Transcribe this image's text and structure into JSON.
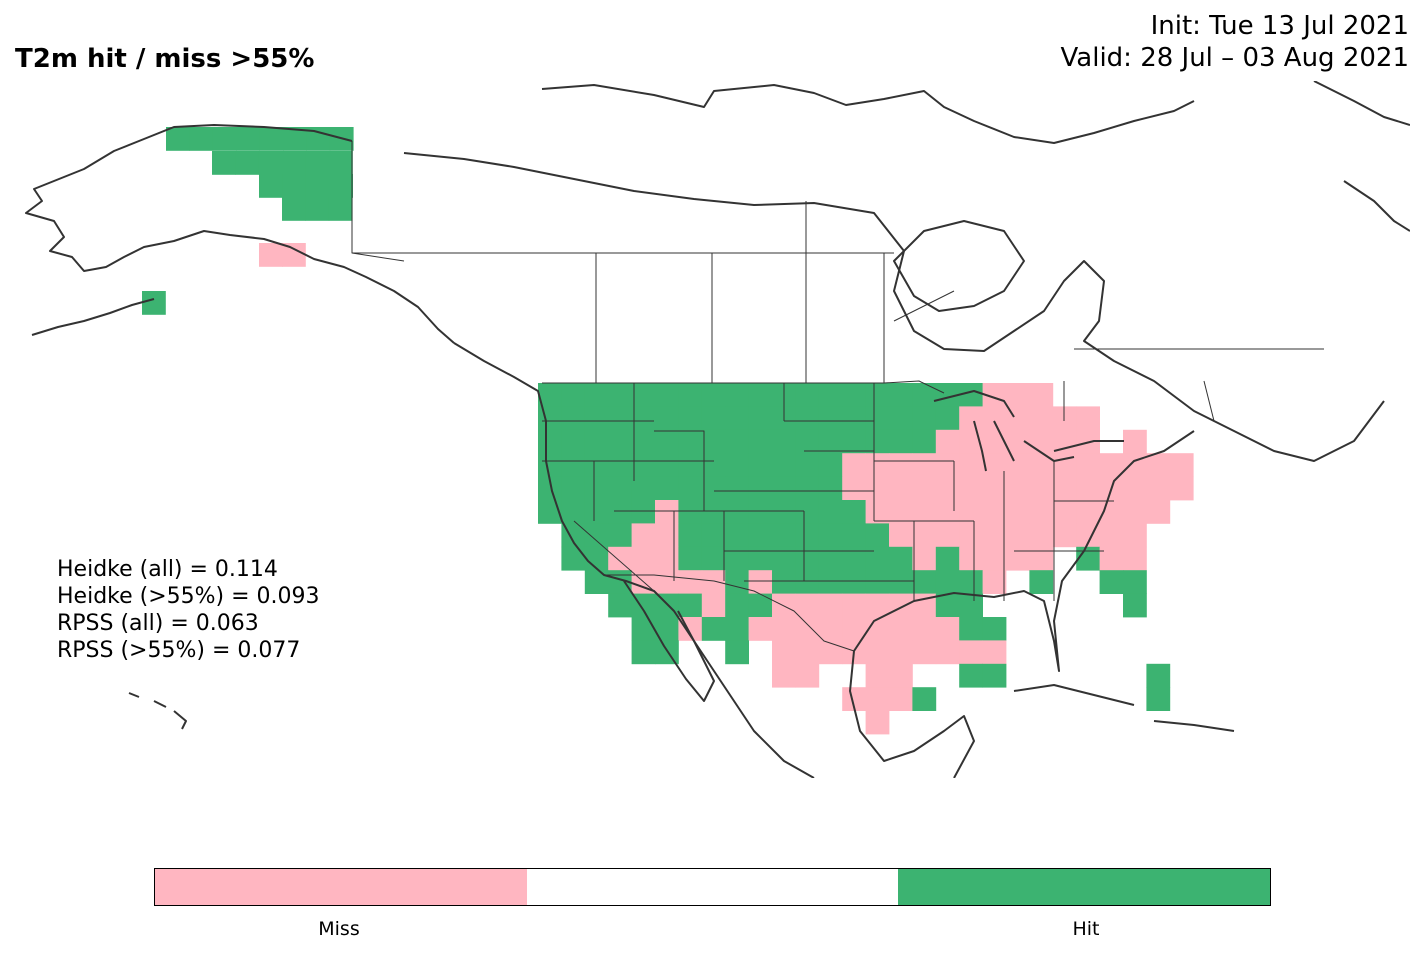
{
  "title": "T2m hit / miss  >55%",
  "init_line": "Init: Tue 13 Jul 2021",
  "valid_line": "Valid: 28 Jul – 03 Aug 2021",
  "stats": [
    "Heidke (all) = 0.114",
    "Heidke (>55%) = 0.093",
    "RPSS (all) = 0.063",
    "RPSS (>55%) = 0.077"
  ],
  "colorbar": {
    "segments": [
      {
        "label": "Miss",
        "color": "#ffb6c1"
      },
      {
        "label": "",
        "color": "#ffffff"
      },
      {
        "label": "Hit",
        "color": "#3cb371"
      }
    ]
  },
  "colors": {
    "miss": "#ffb6c1",
    "hit": "#3cb371",
    "coastline": "#333333",
    "frame": "#000000"
  }
}
